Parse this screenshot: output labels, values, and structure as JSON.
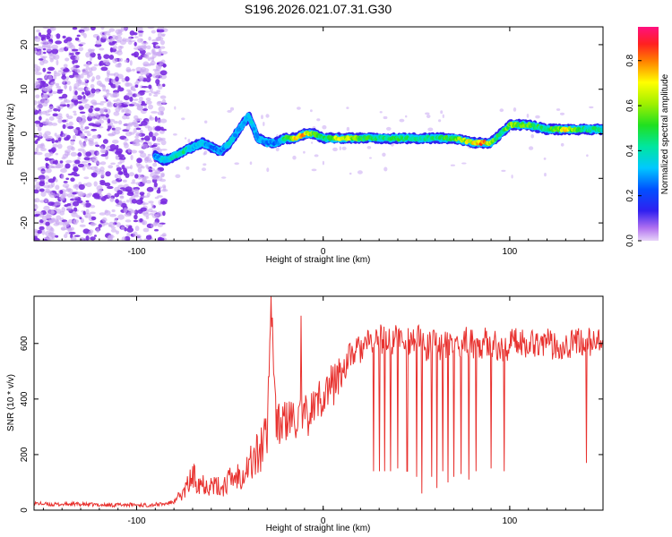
{
  "title": "S196.2026.021.07.31.G30",
  "colors": {
    "background": "#ffffff",
    "axis": "#000000",
    "snr_line": "#e8312e",
    "noise_purple": "#7a2be0",
    "noise_light": "#c9a8f2"
  },
  "chart_data": [
    {
      "type": "heatmap",
      "title": "S196.2026.021.07.31.G30",
      "xlabel": "Height of straight line (km)",
      "ylabel": "Frequency (Hz)",
      "xlim": [
        -155,
        150
      ],
      "ylim": [
        -24,
        24
      ],
      "xticks": [
        -100,
        0,
        100
      ],
      "xtick_labels": [
        "-100",
        "0",
        "100"
      ],
      "yticks": [
        -20,
        -10,
        0,
        10,
        20
      ],
      "ytick_labels": [
        "-20",
        "-10",
        "0",
        "10",
        "20"
      ],
      "ridge": {
        "x": [
          -90,
          -85,
          -80,
          -75,
          -70,
          -65,
          -60,
          -55,
          -50,
          -45,
          -40,
          -35,
          -30,
          -25,
          -20,
          -15,
          -10,
          -5,
          0,
          10,
          20,
          30,
          40,
          50,
          60,
          70,
          80,
          85,
          90,
          95,
          100,
          105,
          110,
          120,
          130,
          140,
          150
        ],
        "freq": [
          -5,
          -6,
          -5,
          -4,
          -3,
          -2,
          -3,
          -4,
          -2,
          1,
          4,
          -1,
          -2,
          -2,
          -1,
          -1,
          0,
          0,
          -1,
          -1,
          -1,
          -1,
          -1,
          -1,
          -1,
          -1,
          -2,
          -2,
          -2,
          0,
          2,
          2,
          2,
          1,
          1,
          1,
          1
        ],
        "amplitude": [
          0.3,
          0.4,
          0.5,
          0.5,
          0.4,
          0.4,
          0.3,
          0.3,
          0.4,
          0.3,
          0.4,
          0.35,
          0.3,
          0.3,
          0.6,
          0.8,
          0.9,
          0.6,
          0.5,
          0.8,
          0.6,
          0.5,
          0.55,
          0.5,
          0.5,
          0.6,
          0.8,
          0.9,
          0.7,
          0.5,
          0.7,
          0.6,
          0.6,
          0.5,
          0.8,
          0.5,
          0.5
        ]
      },
      "noise_region_xlim": [
        -155,
        -85
      ],
      "colorbar": {
        "label": "Normalized spectral amplitude",
        "range": [
          0.0,
          0.95
        ],
        "ticks": [
          0.0,
          0.2,
          0.4,
          0.6,
          0.8
        ],
        "tick_labels": [
          "0.0",
          "0.2",
          "0.4",
          "0.6",
          "0.8"
        ]
      }
    },
    {
      "type": "line",
      "xlabel": "Height of straight line (km)",
      "ylabel": "SNR (10 * v/v)",
      "xlim": [
        -155,
        150
      ],
      "ylim": [
        0,
        770
      ],
      "xticks": [
        -100,
        0,
        100
      ],
      "xtick_labels": [
        "-100",
        "0",
        "100"
      ],
      "yticks": [
        0,
        200,
        400,
        600
      ],
      "ytick_labels": [
        "0",
        "200",
        "400",
        "600"
      ],
      "series": [
        {
          "name": "SNR",
          "x": [
            -155,
            -145,
            -135,
            -125,
            -115,
            -105,
            -95,
            -85,
            -80,
            -75,
            -70,
            -65,
            -60,
            -55,
            -50,
            -45,
            -40,
            -35,
            -30,
            -28,
            -25,
            -20,
            -15,
            -10,
            -5,
            0,
            5,
            10,
            15,
            20,
            25,
            30,
            35,
            40,
            45,
            50,
            55,
            60,
            65,
            70,
            75,
            80,
            85,
            90,
            95,
            100,
            105,
            110,
            115,
            120,
            125,
            130,
            135,
            140,
            145,
            150
          ],
          "values": [
            25,
            20,
            22,
            20,
            18,
            20,
            18,
            22,
            30,
            60,
            120,
            100,
            90,
            80,
            110,
            130,
            160,
            200,
            280,
            770,
            300,
            320,
            330,
            330,
            370,
            420,
            450,
            500,
            560,
            580,
            600,
            620,
            600,
            620,
            610,
            620,
            580,
            600,
            590,
            590,
            610,
            600,
            600,
            610,
            570,
            600,
            610,
            600,
            610,
            600,
            590,
            600,
            600,
            610,
            600,
            600
          ]
        }
      ],
      "dropouts": {
        "x": [
          27,
          30,
          33,
          36,
          40,
          45,
          50,
          53,
          58,
          61,
          64,
          67,
          70,
          74,
          78,
          82,
          90,
          97,
          141
        ],
        "values": [
          140,
          140,
          140,
          140,
          150,
          140,
          120,
          60,
          120,
          80,
          140,
          100,
          120,
          130,
          110,
          140,
          150,
          140,
          170
        ]
      }
    }
  ]
}
